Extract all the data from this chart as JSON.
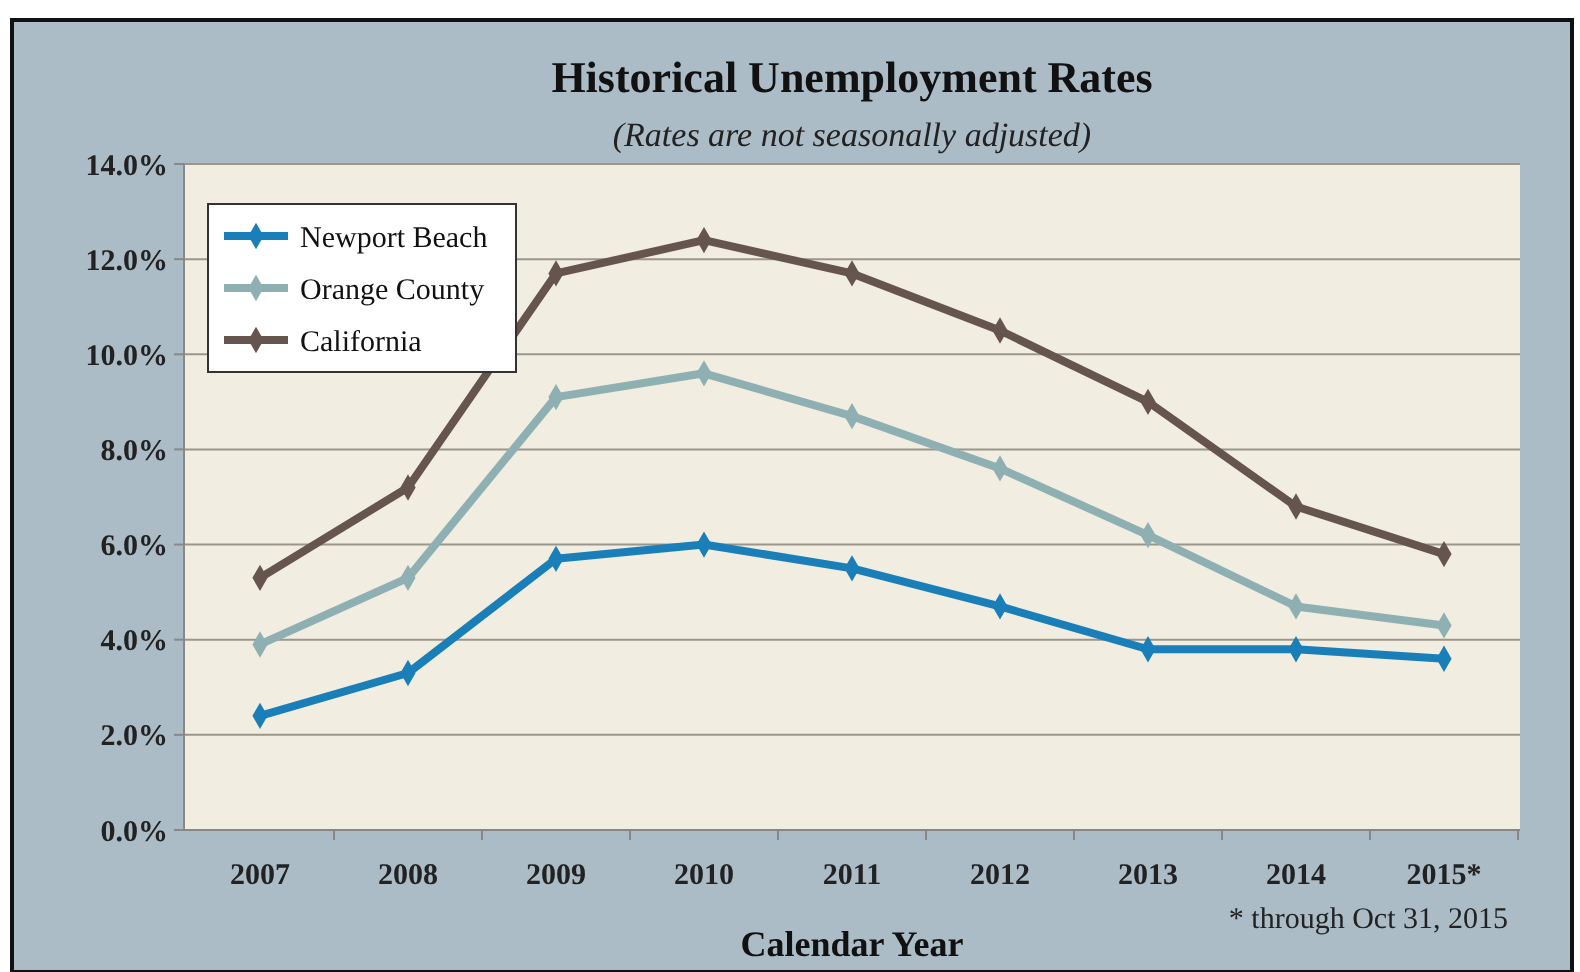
{
  "chart_data": {
    "type": "line",
    "title": "Historical Unemployment Rates",
    "subtitle": "(Rates are not seasonally adjusted)",
    "xlabel": "Calendar Year",
    "annotations": [
      "* through Oct 31, 2015"
    ],
    "categories": [
      "2007",
      "2008",
      "2009",
      "2010",
      "2011",
      "2012",
      "2013",
      "2014",
      "2015*"
    ],
    "series": [
      {
        "name": "Newport Beach",
        "color": "#1a7fb8",
        "values": [
          2.4,
          3.3,
          5.7,
          6.0,
          5.5,
          4.7,
          3.8,
          3.8,
          3.6
        ]
      },
      {
        "name": "Orange County",
        "color": "#8fb0b3",
        "values": [
          3.9,
          5.3,
          9.1,
          9.6,
          8.7,
          7.6,
          6.2,
          4.7,
          4.3
        ]
      },
      {
        "name": "California",
        "color": "#65554e",
        "values": [
          5.3,
          7.2,
          11.7,
          12.4,
          11.7,
          10.5,
          9.0,
          6.8,
          5.8
        ]
      }
    ],
    "ylim": [
      0,
      14
    ],
    "yticks": [
      {
        "value": 0,
        "label": "0.0%"
      },
      {
        "value": 2,
        "label": "2.0%"
      },
      {
        "value": 4,
        "label": "4.0%"
      },
      {
        "value": 6,
        "label": "6.0%"
      },
      {
        "value": 8,
        "label": "8.0%"
      },
      {
        "value": 10,
        "label": "10.0%"
      },
      {
        "value": 12,
        "label": "12.0%"
      },
      {
        "value": 14,
        "label": "14.0%"
      }
    ],
    "grid": "y",
    "legend": "top left",
    "marker": "diamond",
    "line_style": "solid"
  }
}
